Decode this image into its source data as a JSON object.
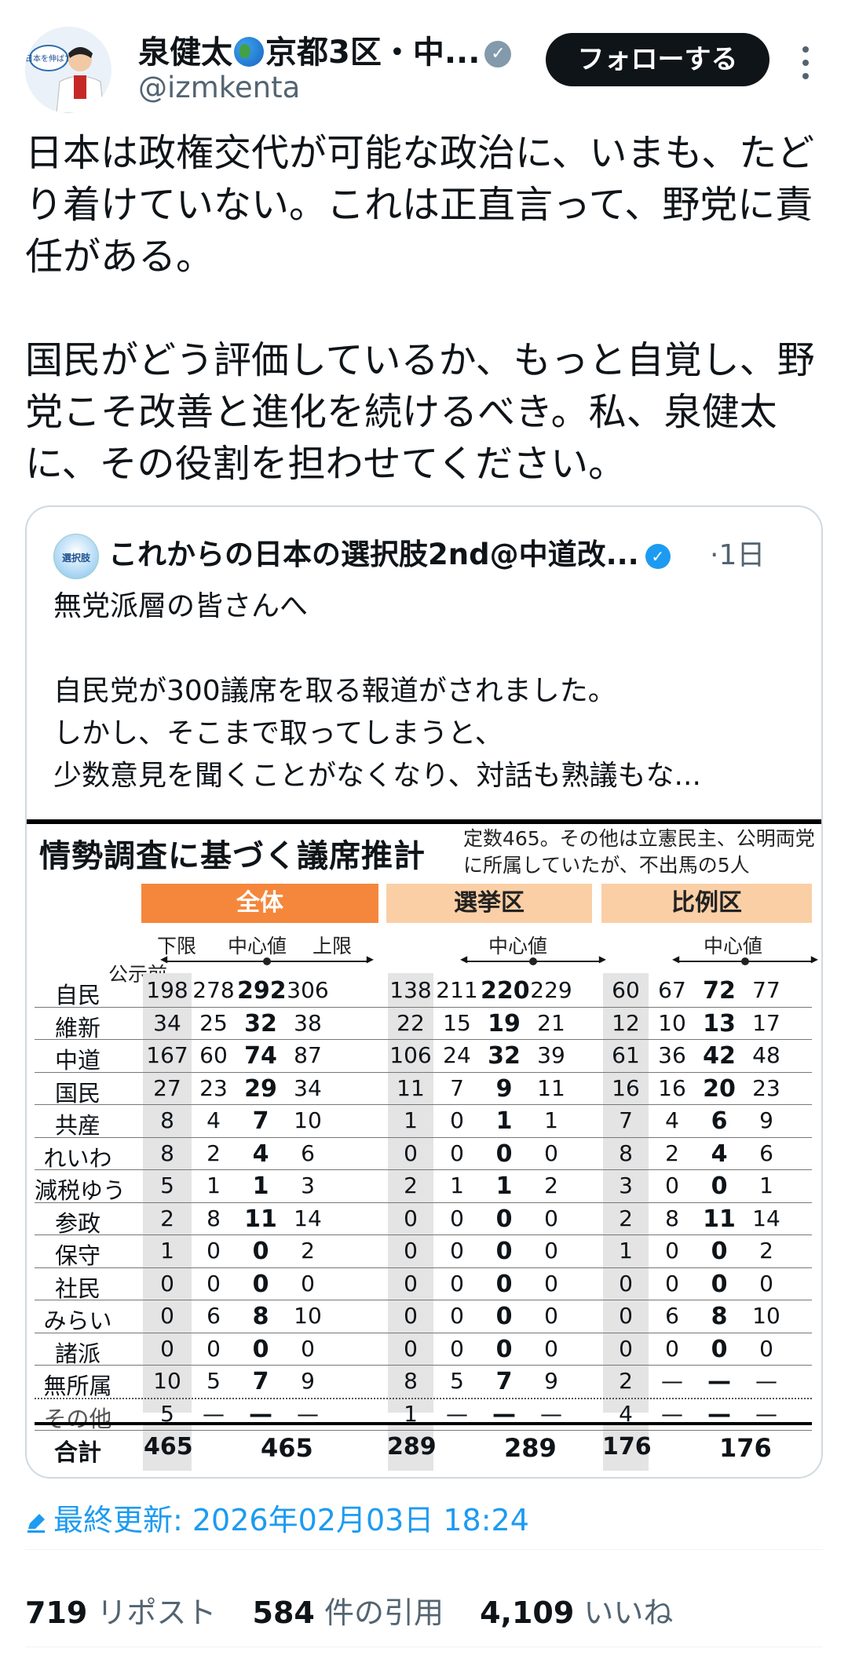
{
  "author": {
    "name": "泉健太",
    "name_suffix": "京都3区・中...",
    "handle": "@izmkenta",
    "avatar_text": "日本を伸ばす",
    "follow_label": "フォローする"
  },
  "tweet_text": "日本は政権交代が可能な政治に、いまも、たどり着けていない。これは正直言って、野党に責任がある。\n\n国民がどう評価しているか、もっと自覚し、野党こそ改善と進化を続けるべき。私、泉健太に、その役割を担わせてください。",
  "quote": {
    "avatar_text": "選択肢",
    "name": "これからの日本の選択肢2nd@中道改...",
    "time": "·1日",
    "text": "無党派層の皆さんへ\n\n自民党が300議席を取る報道がされました。\nしかし、そこまで取ってしまうと、\n少数意見を聞くことがなくなり、対話も熟議もな..."
  },
  "chart_data": {
    "type": "table",
    "title": "情勢調査に基づく議席推計",
    "note": "定数465。その他は立憲民主、公明両党に所属していたが、不出馬の5人",
    "groups": [
      "全体",
      "選挙区",
      "比例区"
    ],
    "subheaders": {
      "before": "公示前",
      "low": "下限",
      "mid": "中心値",
      "high": "上限"
    },
    "columns": [
      "公示前",
      "全体 下限",
      "全体 中心値",
      "全体 上限",
      "選挙区 公示前",
      "選挙区 下限",
      "選挙区 中心値",
      "選挙区 上限",
      "比例区 公示前",
      "比例区 下限",
      "比例区 中心値",
      "比例区 上限"
    ],
    "rows": [
      {
        "party": "自民",
        "values": [
          "198",
          "278",
          "292",
          "306",
          "138",
          "211",
          "220",
          "229",
          "60",
          "67",
          "72",
          "77"
        ]
      },
      {
        "party": "維新",
        "values": [
          "34",
          "25",
          "32",
          "38",
          "22",
          "15",
          "19",
          "21",
          "12",
          "10",
          "13",
          "17"
        ]
      },
      {
        "party": "中道",
        "values": [
          "167",
          "60",
          "74",
          "87",
          "106",
          "24",
          "32",
          "39",
          "61",
          "36",
          "42",
          "48"
        ]
      },
      {
        "party": "国民",
        "values": [
          "27",
          "23",
          "29",
          "34",
          "11",
          "7",
          "9",
          "11",
          "16",
          "16",
          "20",
          "23"
        ]
      },
      {
        "party": "共産",
        "values": [
          "8",
          "4",
          "7",
          "10",
          "1",
          "0",
          "1",
          "1",
          "7",
          "4",
          "6",
          "9"
        ]
      },
      {
        "party": "れいわ",
        "values": [
          "8",
          "2",
          "4",
          "6",
          "0",
          "0",
          "0",
          "0",
          "8",
          "2",
          "4",
          "6"
        ]
      },
      {
        "party": "減税ゆう",
        "values": [
          "5",
          "1",
          "1",
          "3",
          "2",
          "1",
          "1",
          "2",
          "3",
          "0",
          "0",
          "1"
        ]
      },
      {
        "party": "参政",
        "values": [
          "2",
          "8",
          "11",
          "14",
          "0",
          "0",
          "0",
          "0",
          "2",
          "8",
          "11",
          "14"
        ]
      },
      {
        "party": "保守",
        "values": [
          "1",
          "0",
          "0",
          "2",
          "0",
          "0",
          "0",
          "0",
          "1",
          "0",
          "0",
          "2"
        ]
      },
      {
        "party": "社民",
        "values": [
          "0",
          "0",
          "0",
          "0",
          "0",
          "0",
          "0",
          "0",
          "0",
          "0",
          "0",
          "0"
        ]
      },
      {
        "party": "みらい",
        "values": [
          "0",
          "6",
          "8",
          "10",
          "0",
          "0",
          "0",
          "0",
          "0",
          "6",
          "8",
          "10"
        ]
      },
      {
        "party": "諸派",
        "values": [
          "0",
          "0",
          "0",
          "0",
          "0",
          "0",
          "0",
          "0",
          "0",
          "0",
          "0",
          "0"
        ]
      },
      {
        "party": "無所属",
        "values": [
          "10",
          "5",
          "7",
          "9",
          "8",
          "5",
          "7",
          "9",
          "2",
          "—",
          "—",
          "—"
        ]
      },
      {
        "party": "その他",
        "values": [
          "5",
          "—",
          "—",
          "—",
          "1",
          "—",
          "—",
          "—",
          "4",
          "—",
          "—",
          "—"
        ]
      }
    ],
    "total": {
      "label": "合計",
      "values": [
        "465",
        "465",
        "289",
        "289",
        "176",
        "176"
      ]
    }
  },
  "updated": {
    "label": "最終更新: 2026年02月03日 18:24"
  },
  "stats": [
    {
      "count": "719",
      "label": "リポスト"
    },
    {
      "count": "584",
      "label": "件の引用"
    },
    {
      "count": "4,109",
      "label": "いいね"
    }
  ],
  "colors": {
    "accent": "#1d9bf0",
    "orange": "#f4873c",
    "peach": "#fbcfa6"
  }
}
